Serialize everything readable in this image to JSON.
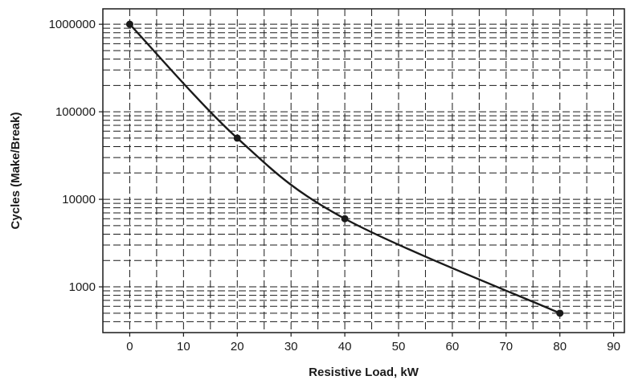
{
  "chart_data": {
    "type": "line",
    "xlabel": "Resistive Load, kW",
    "ylabel": "Cycles (Make/Break)",
    "x_ticks": [
      0,
      10,
      20,
      30,
      40,
      50,
      60,
      70,
      80,
      90
    ],
    "y_ticks": [
      1000,
      10000,
      100000,
      1000000
    ],
    "y_tick_labels": [
      "1000",
      "10000",
      "100000",
      "1000000"
    ],
    "xlim": [
      -5,
      92
    ],
    "ylim": [
      300,
      1500000
    ],
    "y_scale": "log",
    "grid": true,
    "grid_style": "dashed",
    "series": [
      {
        "points": [
          {
            "x": 0,
            "y": 1000000
          },
          {
            "x": 20,
            "y": 50000
          },
          {
            "x": 40,
            "y": 6000
          },
          {
            "x": 80,
            "y": 500
          }
        ]
      }
    ]
  }
}
